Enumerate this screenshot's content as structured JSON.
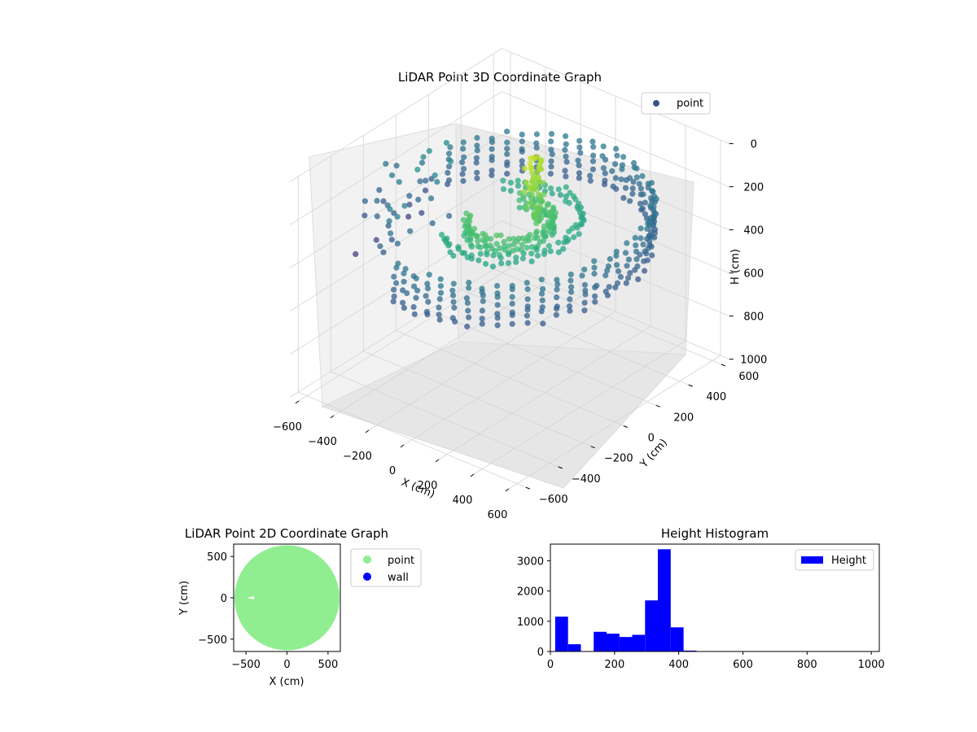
{
  "chart_data": [
    {
      "type": "scatter",
      "projection": "3d",
      "title": "LiDAR Point 3D Coordinate Graph",
      "xlabel": "X (cm)",
      "ylabel": "Y (cm)",
      "zlabel": "H (cm)",
      "x_ticks": [
        -600,
        -400,
        -200,
        0,
        200,
        400,
        600
      ],
      "y_ticks": [
        -600,
        -400,
        -200,
        0,
        200,
        400,
        600
      ],
      "z_ticks": [
        0,
        200,
        400,
        600,
        800,
        1000
      ],
      "xlim": [
        -650,
        650
      ],
      "ylim": [
        -650,
        650
      ],
      "zlim": [
        0,
        1000
      ],
      "z_inverted": true,
      "colormap": "viridis",
      "grid": true,
      "legend": {
        "position": "top-right",
        "entries": [
          {
            "label": "point",
            "color": "#3b528b"
          }
        ]
      },
      "series": [
        {
          "name": "point",
          "description_of_shape": "cylindrical wall ring",
          "rings": [
            {
              "radius": 600,
              "heights": [
                220,
                250,
                280,
                310,
                340,
                370,
                400
              ],
              "theta_range_deg": [
                -100,
                160
              ]
            },
            {
              "radius": 300,
              "heights": [
                260,
                290
              ],
              "theta_range_deg": [
                -120,
                140
              ]
            },
            {
              "radius": 180,
              "heights": [
                250,
                280,
                310
              ],
              "theta_range_deg": [
                -150,
                120
              ]
            }
          ],
          "object_cluster": {
            "x": 50,
            "y": 100,
            "h_range": [
              0,
              300
            ]
          },
          "scattered_far_points": {
            "x_range": [
              -650,
              -450
            ],
            "y_range": [
              -300,
              200
            ],
            "h_range": [
              150,
              500
            ]
          }
        }
      ]
    },
    {
      "type": "scatter",
      "title": "LiDAR Point 2D Coordinate Graph",
      "xlabel": "X (cm)",
      "ylabel": "Y (cm)",
      "x_ticks": [
        -500,
        0,
        500
      ],
      "y_ticks": [
        -500,
        0,
        500
      ],
      "xlim": [
        -650,
        650
      ],
      "ylim": [
        -650,
        650
      ],
      "legend": {
        "position": "outside-right",
        "entries": [
          {
            "label": "point",
            "color": "#90ee90"
          },
          {
            "label": "wall",
            "color": "#0000ff"
          }
        ]
      },
      "series": [
        {
          "name": "point",
          "color": "#90ee90",
          "region": "filled disc radius ~600 clipped to x >= -650",
          "circle_center": [
            0,
            0
          ],
          "circle_radius": 600
        },
        {
          "name": "wall",
          "color": "#0000ff",
          "values": []
        }
      ]
    },
    {
      "type": "bar",
      "subtype": "histogram",
      "title": "Height Histogram",
      "xlabel": "",
      "ylabel": "",
      "x_ticks": [
        0,
        200,
        400,
        600,
        800,
        1000
      ],
      "y_ticks": [
        0,
        1000,
        2000,
        3000
      ],
      "xlim": [
        0,
        1025
      ],
      "ylim": [
        0,
        3550
      ],
      "bin_width": 40,
      "bin_edges_start": 15,
      "color": "#0000ff",
      "legend": {
        "position": "top-right",
        "entries": [
          {
            "label": "Height",
            "color": "#0000ff"
          }
        ]
      },
      "series": [
        {
          "name": "Height",
          "values": [
            1150,
            240,
            0,
            650,
            590,
            480,
            550,
            1690,
            3380,
            800,
            30,
            0,
            0,
            0,
            0,
            0,
            0,
            0,
            0,
            0,
            0,
            0,
            0,
            0,
            0
          ]
        }
      ]
    }
  ]
}
